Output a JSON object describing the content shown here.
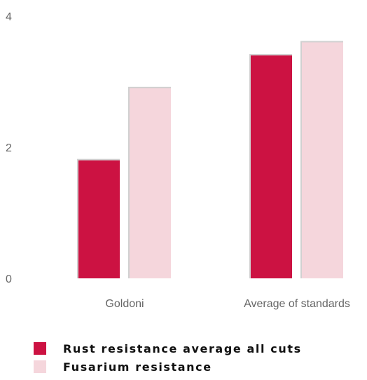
{
  "chart_data": {
    "type": "bar",
    "categories": [
      "Goldoni",
      "Average of standards"
    ],
    "series": [
      {
        "name": "Rust resistance average all cuts",
        "color": "#cc1242",
        "values": [
          1.8,
          3.4
        ]
      },
      {
        "name": "Fusarium resistance",
        "color": "#f5d6dc",
        "values": [
          2.9,
          3.6
        ]
      }
    ],
    "ylim": [
      0,
      4
    ],
    "yticks": [
      "0",
      "2",
      "4"
    ],
    "grid": false,
    "legend_position": "bottom-left",
    "title": "",
    "xlabel": "",
    "ylabel": ""
  }
}
